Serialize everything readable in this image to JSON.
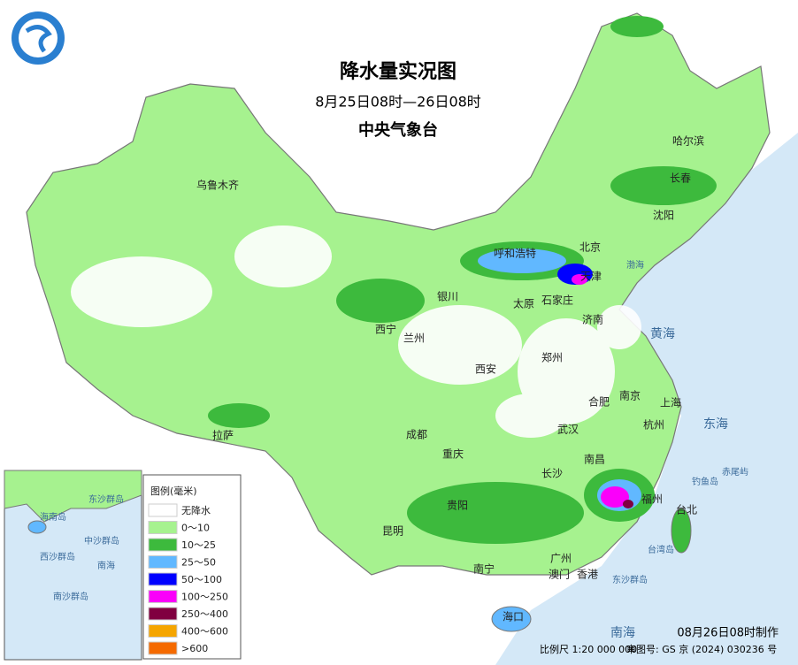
{
  "header": {
    "title": "降水量实况图",
    "period": "8月25日08时—26日08时",
    "issuer": "中央气象台"
  },
  "cities": [
    "乌鲁木齐",
    "哈尔滨",
    "长春",
    "沈阳",
    "北京",
    "天津",
    "呼和浩特",
    "银川",
    "太原",
    "石家庄",
    "济南",
    "西宁",
    "兰州",
    "西安",
    "郑州",
    "合肥",
    "南京",
    "上海",
    "杭州",
    "武汉",
    "成都",
    "重庆",
    "拉萨",
    "长沙",
    "南昌",
    "福州",
    "台北",
    "贵阳",
    "昆明",
    "南宁",
    "广州",
    "澳门",
    "香港",
    "海口"
  ],
  "seas": [
    "渤海",
    "黄海",
    "东海",
    "南海",
    "台湾岛",
    "钓鱼岛",
    "赤尾屿",
    "东沙群岛"
  ],
  "inset": [
    "东沙群岛",
    "西沙群岛",
    "中沙群岛",
    "南沙群岛",
    "海南岛",
    "南海"
  ],
  "legend": {
    "title": "图例(毫米)",
    "items": [
      {
        "label": "无降水",
        "color": "#ffffff"
      },
      {
        "label": "0～10",
        "color": "#a6f28f"
      },
      {
        "label": "10～25",
        "color": "#3dba3d"
      },
      {
        "label": "25～50",
        "color": "#61b8ff"
      },
      {
        "label": "50～100",
        "color": "#0000ff"
      },
      {
        "label": "100～250",
        "color": "#fa00fa"
      },
      {
        "label": "250～400",
        "color": "#800040"
      },
      {
        "label": "400～600",
        "color": "#f5a500"
      },
      {
        "label": ">600",
        "color": "#f56a00"
      }
    ]
  },
  "footer": {
    "made": "08月26日08时制作",
    "scale": "比例尺 1:20 000 000",
    "approval": "审图号: GS 京 (2024) 030236 号"
  }
}
